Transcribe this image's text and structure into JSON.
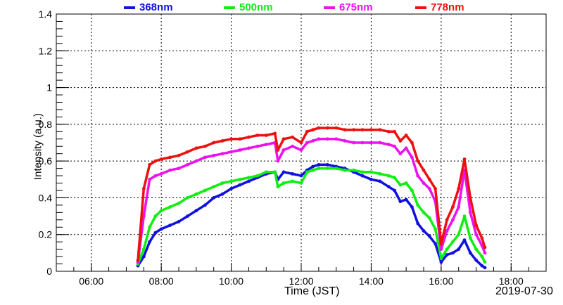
{
  "chart_data": {
    "type": "scatter",
    "title": "",
    "xlabel": "Time (JST)",
    "ylabel": "Intensity (a.u.)",
    "date_label": "2019-07-30",
    "xlim": [
      "05:00",
      "19:00"
    ],
    "ylim": [
      0,
      1.4
    ],
    "x_ticks": [
      "06:00",
      "08:00",
      "10:00",
      "12:00",
      "14:00",
      "16:00",
      "18:00"
    ],
    "y_ticks": [
      "0",
      "0.2",
      "0.4",
      "0.6",
      "0.8",
      "1",
      "1.2",
      "1.4"
    ],
    "grid": true,
    "legend_position": "top",
    "series": [
      {
        "name": "368nm",
        "color": "#1010e0",
        "points": [
          [
            "07:20",
            0.03
          ],
          [
            "07:30",
            0.08
          ],
          [
            "07:40",
            0.16
          ],
          [
            "07:50",
            0.21
          ],
          [
            "08:00",
            0.23
          ],
          [
            "08:15",
            0.25
          ],
          [
            "08:30",
            0.27
          ],
          [
            "08:45",
            0.3
          ],
          [
            "09:00",
            0.33
          ],
          [
            "09:15",
            0.36
          ],
          [
            "09:30",
            0.4
          ],
          [
            "09:45",
            0.42
          ],
          [
            "10:00",
            0.45
          ],
          [
            "10:15",
            0.47
          ],
          [
            "10:30",
            0.49
          ],
          [
            "10:45",
            0.51
          ],
          [
            "11:00",
            0.53
          ],
          [
            "11:15",
            0.54
          ],
          [
            "11:20",
            0.5
          ],
          [
            "11:30",
            0.54
          ],
          [
            "11:45",
            0.53
          ],
          [
            "12:00",
            0.52
          ],
          [
            "12:10",
            0.55
          ],
          [
            "12:20",
            0.57
          ],
          [
            "12:30",
            0.58
          ],
          [
            "12:45",
            0.58
          ],
          [
            "13:00",
            0.57
          ],
          [
            "13:15",
            0.56
          ],
          [
            "13:30",
            0.54
          ],
          [
            "13:45",
            0.52
          ],
          [
            "14:00",
            0.5
          ],
          [
            "14:15",
            0.49
          ],
          [
            "14:30",
            0.46
          ],
          [
            "14:40",
            0.44
          ],
          [
            "14:50",
            0.38
          ],
          [
            "15:00",
            0.39
          ],
          [
            "15:10",
            0.35
          ],
          [
            "15:20",
            0.26
          ],
          [
            "15:30",
            0.22
          ],
          [
            "15:40",
            0.19
          ],
          [
            "15:50",
            0.15
          ],
          [
            "16:00",
            0.05
          ],
          [
            "16:10",
            0.09
          ],
          [
            "16:20",
            0.1
          ],
          [
            "16:30",
            0.12
          ],
          [
            "16:40",
            0.17
          ],
          [
            "16:50",
            0.1
          ],
          [
            "17:00",
            0.06
          ],
          [
            "17:10",
            0.03
          ],
          [
            "17:15",
            0.02
          ]
        ]
      },
      {
        "name": "500nm",
        "color": "#10ee10",
        "points": [
          [
            "07:20",
            0.04
          ],
          [
            "07:30",
            0.12
          ],
          [
            "07:40",
            0.24
          ],
          [
            "07:50",
            0.3
          ],
          [
            "08:00",
            0.33
          ],
          [
            "08:15",
            0.35
          ],
          [
            "08:30",
            0.37
          ],
          [
            "08:45",
            0.4
          ],
          [
            "09:00",
            0.42
          ],
          [
            "09:15",
            0.44
          ],
          [
            "09:30",
            0.46
          ],
          [
            "09:45",
            0.48
          ],
          [
            "10:00",
            0.49
          ],
          [
            "10:15",
            0.5
          ],
          [
            "10:30",
            0.51
          ],
          [
            "10:45",
            0.52
          ],
          [
            "11:00",
            0.54
          ],
          [
            "11:15",
            0.54
          ],
          [
            "11:20",
            0.46
          ],
          [
            "11:30",
            0.48
          ],
          [
            "11:45",
            0.49
          ],
          [
            "12:00",
            0.48
          ],
          [
            "12:10",
            0.54
          ],
          [
            "12:20",
            0.55
          ],
          [
            "12:30",
            0.56
          ],
          [
            "12:45",
            0.56
          ],
          [
            "13:00",
            0.56
          ],
          [
            "13:15",
            0.55
          ],
          [
            "13:30",
            0.55
          ],
          [
            "13:45",
            0.54
          ],
          [
            "14:00",
            0.54
          ],
          [
            "14:15",
            0.53
          ],
          [
            "14:30",
            0.52
          ],
          [
            "14:40",
            0.51
          ],
          [
            "14:50",
            0.47
          ],
          [
            "15:00",
            0.48
          ],
          [
            "15:10",
            0.44
          ],
          [
            "15:20",
            0.36
          ],
          [
            "15:30",
            0.32
          ],
          [
            "15:40",
            0.29
          ],
          [
            "15:50",
            0.23
          ],
          [
            "16:00",
            0.07
          ],
          [
            "16:10",
            0.12
          ],
          [
            "16:20",
            0.16
          ],
          [
            "16:30",
            0.2
          ],
          [
            "16:40",
            0.3
          ],
          [
            "16:50",
            0.18
          ],
          [
            "17:00",
            0.12
          ],
          [
            "17:10",
            0.08
          ],
          [
            "17:15",
            0.05
          ]
        ]
      },
      {
        "name": "675nm",
        "color": "#ee10ee",
        "points": [
          [
            "07:20",
            0.05
          ],
          [
            "07:30",
            0.3
          ],
          [
            "07:40",
            0.5
          ],
          [
            "07:50",
            0.52
          ],
          [
            "08:00",
            0.53
          ],
          [
            "08:15",
            0.55
          ],
          [
            "08:30",
            0.56
          ],
          [
            "08:45",
            0.58
          ],
          [
            "09:00",
            0.6
          ],
          [
            "09:15",
            0.62
          ],
          [
            "09:30",
            0.63
          ],
          [
            "09:45",
            0.64
          ],
          [
            "10:00",
            0.65
          ],
          [
            "10:15",
            0.66
          ],
          [
            "10:30",
            0.67
          ],
          [
            "10:45",
            0.68
          ],
          [
            "11:00",
            0.69
          ],
          [
            "11:15",
            0.7
          ],
          [
            "11:20",
            0.6
          ],
          [
            "11:30",
            0.66
          ],
          [
            "11:45",
            0.68
          ],
          [
            "12:00",
            0.66
          ],
          [
            "12:10",
            0.7
          ],
          [
            "12:20",
            0.71
          ],
          [
            "12:30",
            0.72
          ],
          [
            "12:45",
            0.72
          ],
          [
            "13:00",
            0.72
          ],
          [
            "13:15",
            0.71
          ],
          [
            "13:30",
            0.7
          ],
          [
            "13:45",
            0.7
          ],
          [
            "14:00",
            0.7
          ],
          [
            "14:15",
            0.7
          ],
          [
            "14:30",
            0.69
          ],
          [
            "14:40",
            0.68
          ],
          [
            "14:50",
            0.64
          ],
          [
            "15:00",
            0.67
          ],
          [
            "15:10",
            0.62
          ],
          [
            "15:20",
            0.52
          ],
          [
            "15:30",
            0.48
          ],
          [
            "15:40",
            0.45
          ],
          [
            "15:50",
            0.38
          ],
          [
            "16:00",
            0.12
          ],
          [
            "16:10",
            0.22
          ],
          [
            "16:20",
            0.28
          ],
          [
            "16:30",
            0.35
          ],
          [
            "16:40",
            0.55
          ],
          [
            "16:50",
            0.32
          ],
          [
            "17:00",
            0.2
          ],
          [
            "17:10",
            0.14
          ],
          [
            "17:15",
            0.1
          ]
        ]
      },
      {
        "name": "778nm",
        "color": "#ee1010",
        "points": [
          [
            "07:20",
            0.06
          ],
          [
            "07:30",
            0.45
          ],
          [
            "07:40",
            0.58
          ],
          [
            "07:50",
            0.6
          ],
          [
            "08:00",
            0.61
          ],
          [
            "08:15",
            0.62
          ],
          [
            "08:30",
            0.63
          ],
          [
            "08:45",
            0.65
          ],
          [
            "09:00",
            0.67
          ],
          [
            "09:15",
            0.68
          ],
          [
            "09:30",
            0.7
          ],
          [
            "09:45",
            0.71
          ],
          [
            "10:00",
            0.72
          ],
          [
            "10:15",
            0.72
          ],
          [
            "10:30",
            0.73
          ],
          [
            "10:45",
            0.74
          ],
          [
            "11:00",
            0.74
          ],
          [
            "11:15",
            0.75
          ],
          [
            "11:20",
            0.66
          ],
          [
            "11:30",
            0.72
          ],
          [
            "11:45",
            0.73
          ],
          [
            "12:00",
            0.7
          ],
          [
            "12:10",
            0.76
          ],
          [
            "12:20",
            0.77
          ],
          [
            "12:30",
            0.78
          ],
          [
            "12:45",
            0.78
          ],
          [
            "13:00",
            0.78
          ],
          [
            "13:15",
            0.77
          ],
          [
            "13:30",
            0.77
          ],
          [
            "13:45",
            0.77
          ],
          [
            "14:00",
            0.77
          ],
          [
            "14:15",
            0.77
          ],
          [
            "14:30",
            0.76
          ],
          [
            "14:40",
            0.76
          ],
          [
            "14:50",
            0.71
          ],
          [
            "15:00",
            0.74
          ],
          [
            "15:10",
            0.7
          ],
          [
            "15:20",
            0.6
          ],
          [
            "15:30",
            0.55
          ],
          [
            "15:40",
            0.5
          ],
          [
            "15:50",
            0.45
          ],
          [
            "16:00",
            0.15
          ],
          [
            "16:10",
            0.28
          ],
          [
            "16:20",
            0.35
          ],
          [
            "16:30",
            0.45
          ],
          [
            "16:40",
            0.61
          ],
          [
            "16:50",
            0.4
          ],
          [
            "17:00",
            0.25
          ],
          [
            "17:10",
            0.18
          ],
          [
            "17:15",
            0.13
          ]
        ]
      }
    ]
  }
}
